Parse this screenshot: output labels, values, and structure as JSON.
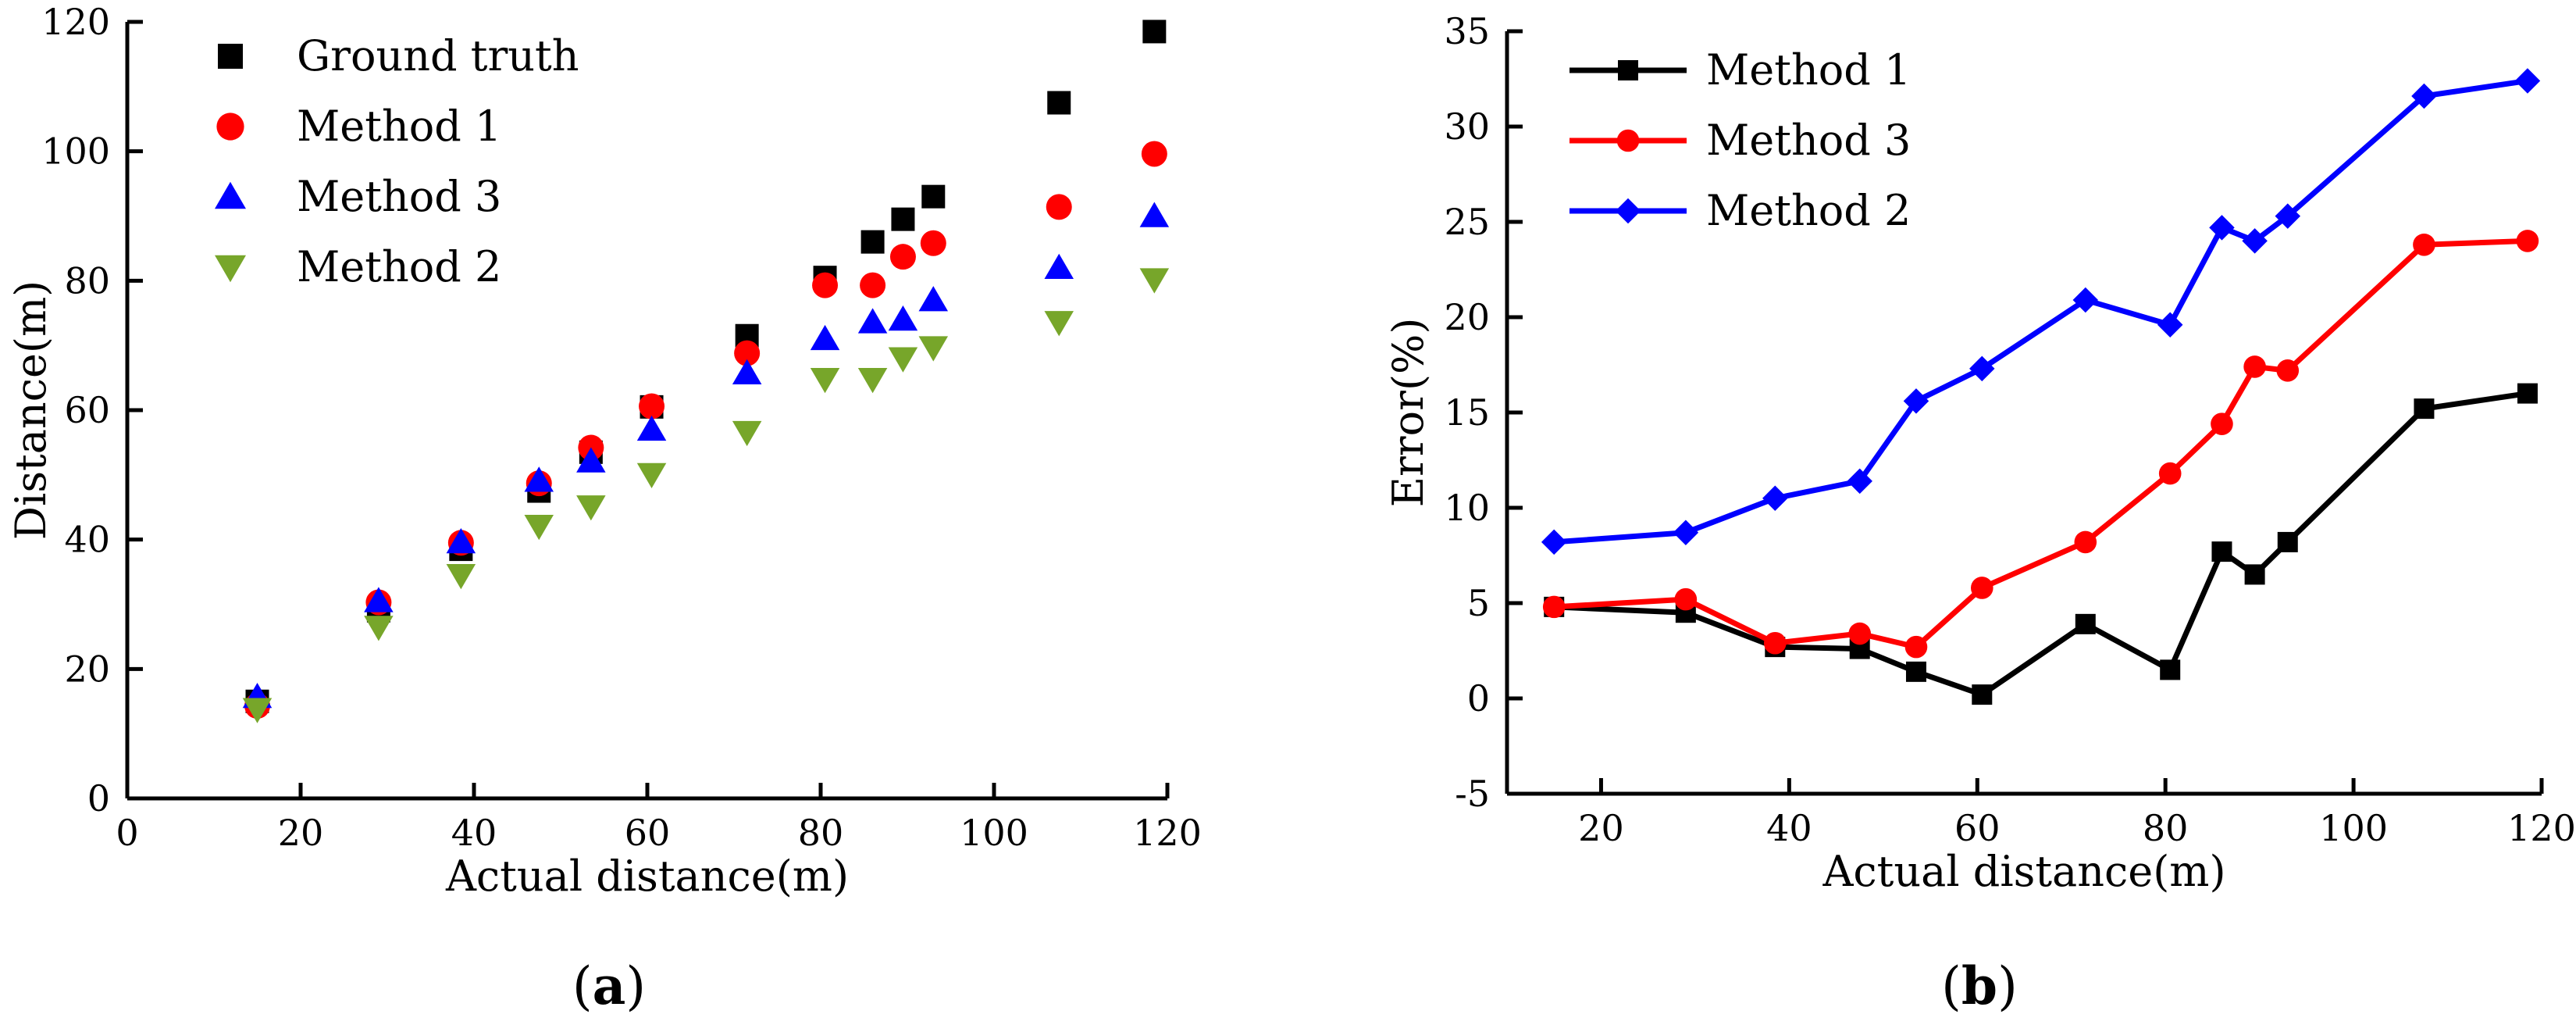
{
  "chart_data": [
    {
      "type": "scatter",
      "panel_label": "a",
      "title": "",
      "xlabel": "Actual distance(m)",
      "ylabel": "Distance(m)",
      "xlim": [
        0,
        120
      ],
      "ylim": [
        0,
        120
      ],
      "xticks": [
        0,
        20,
        40,
        60,
        80,
        100,
        120
      ],
      "yticks": [
        0,
        20,
        40,
        60,
        80,
        100,
        120
      ],
      "legend_position": "top-left",
      "series": [
        {
          "name": "Ground truth",
          "marker": "square",
          "color": "#000000",
          "x": [
            15,
            29,
            38.5,
            47.5,
            53.5,
            60.5,
            71.5,
            80.5,
            86,
            89.5,
            93,
            107.5,
            118.5
          ],
          "y": [
            15,
            29,
            38.5,
            47.5,
            53.5,
            60.5,
            71.5,
            80.5,
            86,
            89.5,
            93,
            107.5,
            118.5
          ]
        },
        {
          "name": "Method 1",
          "marker": "circle",
          "color": "#ff0000",
          "x": [
            15,
            29,
            38.5,
            47.5,
            53.5,
            60.5,
            71.5,
            80.5,
            86,
            89.5,
            93,
            107.5,
            118.5
          ],
          "y": [
            14.3,
            30.3,
            39.5,
            48.7,
            54.2,
            60.6,
            68.8,
            79.3,
            79.3,
            83.7,
            85.8,
            91.4,
            99.6
          ]
        },
        {
          "name": "Method 3",
          "marker": "triangle-up",
          "color": "#0000ff",
          "x": [
            15,
            29,
            38.5,
            47.5,
            53.5,
            60.5,
            71.5,
            80.5,
            86,
            89.5,
            93,
            107.5,
            118.5
          ],
          "y": [
            15.7,
            30.5,
            39.6,
            49.1,
            52.1,
            57.0,
            65.7,
            71.0,
            73.6,
            74.0,
            77.0,
            82.0,
            90.0
          ]
        },
        {
          "name": "Method 2",
          "marker": "triangle-down",
          "color": "#77a62a",
          "x": [
            15,
            29,
            38.5,
            47.5,
            53.5,
            60.5,
            71.5,
            80.5,
            86,
            89.5,
            93,
            107.5,
            118.5
          ],
          "y": [
            13.8,
            26.5,
            34.5,
            42.1,
            45.1,
            50.1,
            56.6,
            64.8,
            64.8,
            68.0,
            69.7,
            73.6,
            80.2
          ]
        }
      ]
    },
    {
      "type": "line",
      "panel_label": "b",
      "title": "",
      "xlabel": "Actual distance(m)",
      "ylabel": "Error(%)",
      "xlim": [
        10,
        120
      ],
      "ylim": [
        -5,
        35
      ],
      "xticks": [
        20,
        40,
        60,
        80,
        100,
        120
      ],
      "yticks": [
        -5,
        0,
        5,
        10,
        15,
        20,
        25,
        30,
        35
      ],
      "legend_position": "top-left",
      "series": [
        {
          "name": "Method 1",
          "marker": "square",
          "color": "#000000",
          "x": [
            15,
            29,
            38.5,
            47.5,
            53.5,
            60.5,
            71.5,
            80.5,
            86,
            89.5,
            93,
            107.5,
            118.5
          ],
          "y": [
            4.8,
            4.5,
            2.7,
            2.6,
            1.4,
            0.2,
            3.9,
            1.5,
            7.7,
            6.5,
            8.2,
            15.2,
            16.0
          ]
        },
        {
          "name": "Method 3",
          "marker": "circle",
          "color": "#ff0000",
          "x": [
            15,
            29,
            38.5,
            47.5,
            53.5,
            60.5,
            71.5,
            80.5,
            86,
            89.5,
            93,
            107.5,
            118.5
          ],
          "y": [
            4.8,
            5.2,
            2.9,
            3.4,
            2.7,
            5.8,
            8.2,
            11.8,
            14.4,
            17.4,
            17.2,
            23.8,
            24.0
          ]
        },
        {
          "name": "Method 2",
          "marker": "diamond",
          "color": "#0000ff",
          "x": [
            15,
            29,
            38.5,
            47.5,
            53.5,
            60.5,
            71.5,
            80.5,
            86,
            89.5,
            93,
            107.5,
            118.5
          ],
          "y": [
            8.2,
            8.7,
            10.5,
            11.4,
            15.6,
            17.3,
            20.9,
            19.6,
            24.7,
            24.0,
            25.3,
            31.6,
            32.4
          ]
        }
      ]
    }
  ]
}
